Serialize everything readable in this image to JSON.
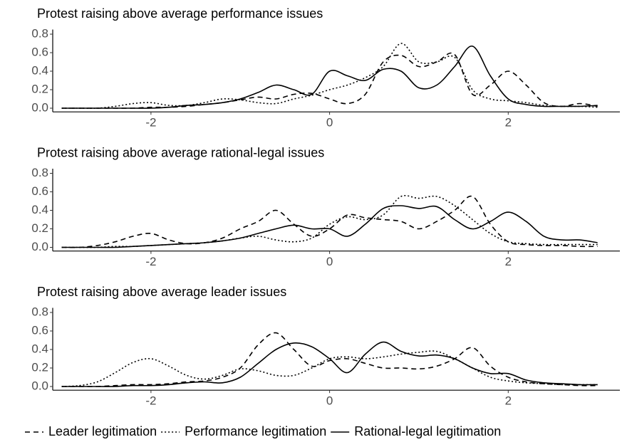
{
  "chart_data": [
    {
      "type": "line",
      "title": "Protest raising above average performance issues",
      "x": [
        -3,
        -2.8,
        -2.6,
        -2.4,
        -2.2,
        -2,
        -1.8,
        -1.6,
        -1.4,
        -1.2,
        -1,
        -0.8,
        -0.6,
        -0.4,
        -0.2,
        0,
        0.2,
        0.4,
        0.6,
        0.8,
        1,
        1.2,
        1.4,
        1.6,
        1.8,
        2,
        2.2,
        2.4,
        2.6,
        2.8,
        3
      ],
      "series": [
        {
          "name": "Leader legitimation",
          "color": "#000000",
          "linestyle": "dashed",
          "values": [
            0,
            0,
            0,
            0,
            0,
            0.01,
            0.01,
            0.02,
            0.04,
            0.06,
            0.09,
            0.12,
            0.1,
            0.15,
            0.16,
            0.1,
            0.05,
            0.15,
            0.5,
            0.57,
            0.45,
            0.5,
            0.58,
            0.15,
            0.25,
            0.4,
            0.25,
            0.06,
            0.02,
            0.05,
            0.02
          ]
        },
        {
          "name": "Performance legitimation",
          "color": "#000000",
          "linestyle": "dotted",
          "values": [
            0,
            0,
            0,
            0.02,
            0.05,
            0.06,
            0.03,
            0.03,
            0.06,
            0.1,
            0.09,
            0.06,
            0.05,
            0.1,
            0.14,
            0.2,
            0.25,
            0.33,
            0.45,
            0.7,
            0.5,
            0.5,
            0.55,
            0.2,
            0.1,
            0.08,
            0.06,
            0.03,
            0.02,
            0.02,
            0.01
          ]
        },
        {
          "name": "Rational-legal legitimation",
          "color": "#000000",
          "linestyle": "solid",
          "values": [
            0,
            0,
            0,
            0,
            0,
            0,
            0.01,
            0.03,
            0.04,
            0.06,
            0.1,
            0.17,
            0.25,
            0.2,
            0.15,
            0.4,
            0.35,
            0.3,
            0.42,
            0.4,
            0.22,
            0.25,
            0.45,
            0.67,
            0.35,
            0.1,
            0.04,
            0.02,
            0.02,
            0.02,
            0.03
          ]
        }
      ],
      "xlim": [
        -3.1,
        3.25
      ],
      "ylim": [
        -0.04,
        0.85
      ],
      "xticks": [
        -2,
        0,
        2
      ],
      "yticks": [
        {
          "value": 0,
          "label": "0.0"
        },
        0.2,
        0.4,
        0.6,
        0.8
      ]
    },
    {
      "type": "line",
      "title": "Protest raising above average rational-legal issues",
      "x": [
        -3,
        -2.8,
        -2.6,
        -2.4,
        -2.2,
        -2,
        -1.8,
        -1.6,
        -1.4,
        -1.2,
        -1,
        -0.8,
        -0.6,
        -0.4,
        -0.2,
        0,
        0.2,
        0.4,
        0.6,
        0.8,
        1,
        1.2,
        1.4,
        1.6,
        1.8,
        2,
        2.2,
        2.4,
        2.6,
        2.8,
        3
      ],
      "series": [
        {
          "color": "#000000",
          "linestyle": "dashed",
          "values": [
            0,
            0,
            0.02,
            0.06,
            0.12,
            0.15,
            0.08,
            0.04,
            0.05,
            0.1,
            0.2,
            0.28,
            0.4,
            0.25,
            0.12,
            0.2,
            0.35,
            0.32,
            0.3,
            0.28,
            0.2,
            0.28,
            0.4,
            0.55,
            0.25,
            0.06,
            0.03,
            0.02,
            0.02,
            0.01,
            0.01
          ]
        },
        {
          "color": "#000000",
          "linestyle": "dotted",
          "values": [
            0,
            0,
            0,
            0.01,
            0.01,
            0.02,
            0.03,
            0.04,
            0.05,
            0.07,
            0.1,
            0.12,
            0.08,
            0.06,
            0.1,
            0.25,
            0.33,
            0.3,
            0.35,
            0.55,
            0.53,
            0.55,
            0.45,
            0.3,
            0.15,
            0.06,
            0.04,
            0.03,
            0.03,
            0.03,
            0.03
          ]
        },
        {
          "color": "#000000",
          "linestyle": "solid",
          "values": [
            0,
            0,
            0,
            0,
            0.01,
            0.02,
            0.03,
            0.04,
            0.05,
            0.07,
            0.1,
            0.15,
            0.2,
            0.24,
            0.2,
            0.2,
            0.12,
            0.25,
            0.42,
            0.45,
            0.42,
            0.44,
            0.3,
            0.2,
            0.28,
            0.38,
            0.28,
            0.12,
            0.08,
            0.08,
            0.05
          ]
        }
      ],
      "xlim": [
        -3.1,
        3.25
      ],
      "ylim": [
        -0.04,
        0.85
      ],
      "xticks": [
        -2,
        0,
        2
      ],
      "yticks": [
        {
          "value": 0,
          "label": "0.0"
        },
        0.2,
        0.4,
        0.6,
        0.8
      ]
    },
    {
      "type": "line",
      "title": "Protest raising above average leader issues",
      "x": [
        -3,
        -2.8,
        -2.6,
        -2.4,
        -2.2,
        -2,
        -1.8,
        -1.6,
        -1.4,
        -1.2,
        -1,
        -0.8,
        -0.6,
        -0.4,
        -0.2,
        0,
        0.2,
        0.4,
        0.6,
        0.8,
        1,
        1.2,
        1.4,
        1.6,
        1.8,
        2,
        2.2,
        2.4,
        2.6,
        2.8,
        3
      ],
      "series": [
        {
          "color": "#000000",
          "linestyle": "dashed",
          "values": [
            0,
            0,
            0,
            0.01,
            0.02,
            0.02,
            0.03,
            0.05,
            0.06,
            0.1,
            0.2,
            0.45,
            0.58,
            0.4,
            0.22,
            0.28,
            0.3,
            0.25,
            0.2,
            0.2,
            0.19,
            0.22,
            0.3,
            0.42,
            0.22,
            0.1,
            0.05,
            0.03,
            0.02,
            0.01,
            0.01
          ]
        },
        {
          "color": "#000000",
          "linestyle": "dotted",
          "values": [
            0,
            0.01,
            0.05,
            0.15,
            0.26,
            0.3,
            0.22,
            0.12,
            0.08,
            0.12,
            0.19,
            0.17,
            0.12,
            0.12,
            0.2,
            0.3,
            0.32,
            0.3,
            0.32,
            0.35,
            0.37,
            0.38,
            0.3,
            0.2,
            0.1,
            0.06,
            0.04,
            0.03,
            0.02,
            0.02,
            0.02
          ]
        },
        {
          "color": "#000000",
          "linestyle": "solid",
          "values": [
            0,
            0,
            0,
            0,
            0.01,
            0.01,
            0.02,
            0.04,
            0.05,
            0.04,
            0.1,
            0.25,
            0.4,
            0.47,
            0.43,
            0.3,
            0.15,
            0.35,
            0.48,
            0.38,
            0.33,
            0.34,
            0.3,
            0.2,
            0.14,
            0.14,
            0.07,
            0.04,
            0.03,
            0.02,
            0.02
          ]
        }
      ],
      "xlim": [
        -3.1,
        3.25
      ],
      "ylim": [
        -0.04,
        0.85
      ],
      "xticks": [
        -2,
        0,
        2
      ],
      "yticks": [
        {
          "value": 0,
          "label": "0.0"
        },
        0.2,
        0.4,
        0.6,
        0.8
      ]
    }
  ]
}
